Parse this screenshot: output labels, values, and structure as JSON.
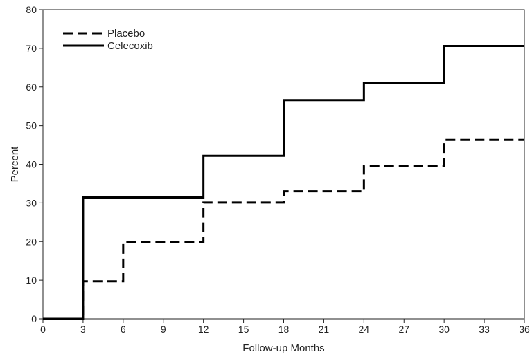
{
  "chart_data": {
    "type": "line",
    "step": true,
    "title": "",
    "xlabel": "Follow-up Months",
    "ylabel": "Percent",
    "xlim": [
      0,
      36
    ],
    "ylim": [
      0,
      80
    ],
    "xticks": [
      0,
      3,
      6,
      9,
      12,
      15,
      18,
      21,
      24,
      27,
      30,
      33,
      36
    ],
    "yticks": [
      0,
      10,
      20,
      30,
      40,
      50,
      60,
      70,
      80
    ],
    "grid": false,
    "legend_position": "top-left",
    "series": [
      {
        "name": "Placebo",
        "style": "dashed",
        "color": "#000000",
        "x": [
          0,
          3,
          6,
          12,
          18,
          24,
          30,
          36
        ],
        "y": [
          0,
          9.7,
          19.8,
          30.1,
          33.0,
          39.6,
          46.3,
          46.3
        ]
      },
      {
        "name": "Celecoxib",
        "style": "solid",
        "color": "#000000",
        "x": [
          0,
          3,
          12,
          18,
          24,
          30,
          36
        ],
        "y": [
          0,
          31.4,
          42.2,
          56.6,
          61.0,
          70.6,
          70.6
        ]
      }
    ]
  }
}
